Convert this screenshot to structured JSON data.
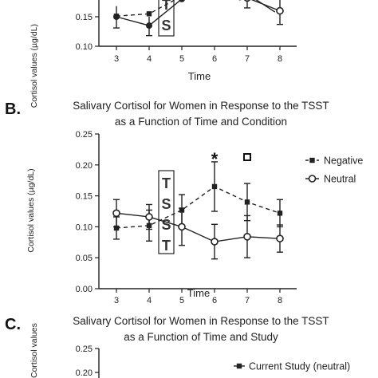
{
  "chart_data": [
    {
      "type": "line",
      "panel_label": "",
      "title_lines": [],
      "xlabel": "Time",
      "ylabel": "Cortisol values (µg/dL)",
      "ylim": [
        0.1,
        0.25
      ],
      "yticks_visible": [
        "0.10",
        "0.15"
      ],
      "xticks": [
        3,
        4,
        5,
        6,
        7,
        8
      ],
      "tsst_box_text": [
        "T",
        "S"
      ],
      "series": [
        {
          "name": "",
          "style": "dashed",
          "marker": "filled-square",
          "points": [
            [
              3,
              0.151
            ],
            [
              4,
              0.155
            ],
            [
              5,
              0.185
            ]
          ]
        },
        {
          "name": "",
          "style": "solid",
          "marker": "filled-circle",
          "points": [
            [
              3,
              0.15
            ],
            [
              4,
              0.135
            ],
            [
              5,
              0.18
            ]
          ]
        },
        {
          "name": "",
          "style": "solid",
          "marker": "open-circle",
          "points": [
            [
              7,
              0.182
            ],
            [
              8,
              0.16
            ]
          ]
        }
      ]
    },
    {
      "type": "line",
      "panel_label": "B.",
      "title_lines": [
        "Salivary Cortisol for Women in Response to the TSST",
        "as a Function of Time and Condition"
      ],
      "xlabel": "Time",
      "ylabel": "Cortisol values (µg/dL)",
      "ylim": [
        0.0,
        0.25
      ],
      "yticks": [
        "0.00",
        "0.05",
        "0.10",
        "0.15",
        "0.20",
        "0.25"
      ],
      "xticks": [
        3,
        4,
        5,
        6,
        7,
        8
      ],
      "tsst_box_text": [
        "T",
        "S",
        "S",
        "T"
      ],
      "annotations": [
        {
          "text": "*",
          "x": 6,
          "y": 0.215
        }
      ],
      "series": [
        {
          "name": "Negative",
          "style": "dashed",
          "marker": "filled-square",
          "x": [
            3,
            4,
            5,
            6,
            7,
            8
          ],
          "values": [
            0.098,
            0.102,
            0.127,
            0.165,
            0.14,
            0.122
          ],
          "err": [
            0.018,
            0.025,
            0.025,
            0.04,
            0.03,
            0.022
          ]
        },
        {
          "name": "Neutral",
          "style": "solid",
          "marker": "open-circle",
          "x": [
            3,
            4,
            5,
            6,
            7,
            8
          ],
          "values": [
            0.122,
            0.116,
            0.1,
            0.076,
            0.084,
            0.081
          ],
          "err": [
            0.022,
            0.02,
            0.03,
            0.028,
            0.034,
            0.022
          ]
        }
      ],
      "legend_position": "right"
    },
    {
      "type": "line",
      "panel_label": "C.",
      "title_lines": [
        "Salivary Cortisol for Women in Response to the TSST",
        "as a Function of Time and Study"
      ],
      "xlabel": "",
      "ylabel": "Cortisol values",
      "yticks_visible": [
        "0.25",
        "0.20"
      ],
      "series": [
        {
          "name": "Current Study (neutral)",
          "style": "solid",
          "marker": "filled-square"
        }
      ],
      "legend_position": "right"
    }
  ]
}
